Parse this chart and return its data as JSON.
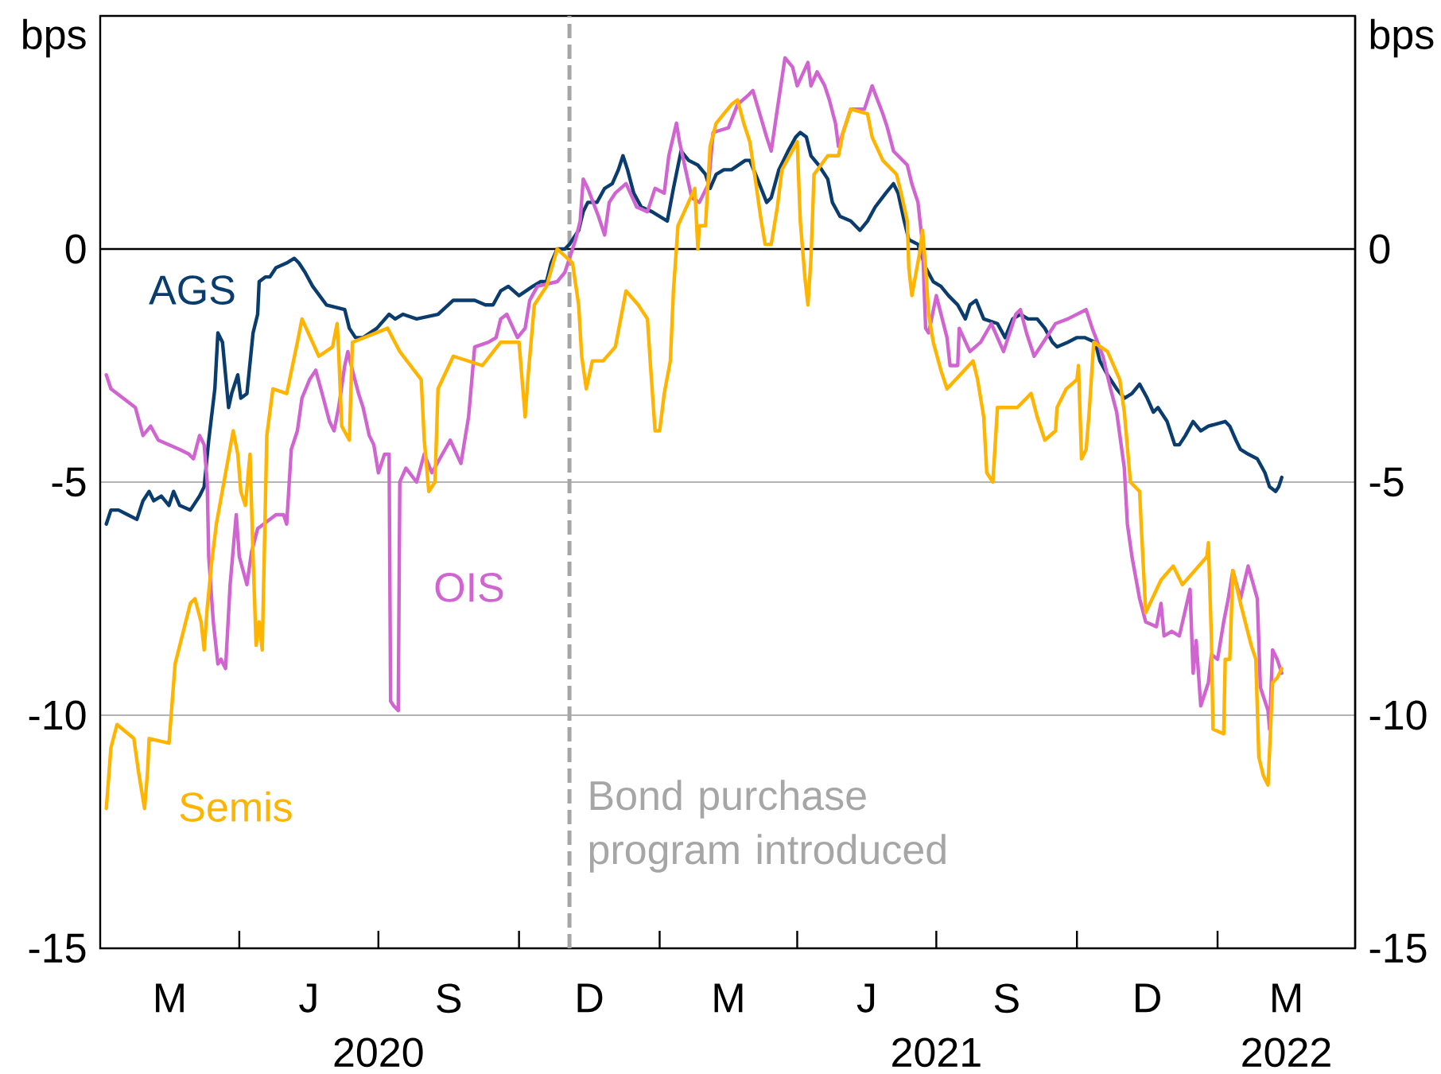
{
  "chart_data": {
    "type": "line",
    "ylabel": "bps",
    "y2label": "bps",
    "xlim": [
      "2020-01-01",
      "2022-04-01"
    ],
    "xticks": [
      {
        "value": "2020-04-01",
        "label": null
      },
      {
        "value": "2020-07-01",
        "label": null
      },
      {
        "value": "2020-07-01",
        "label": "2020"
      },
      {
        "value": "2020-10-01",
        "label": null
      },
      {
        "value": "2021-01-01",
        "label": null
      },
      {
        "value": "2021-04-01",
        "label": null
      },
      {
        "value": "2021-07-01",
        "label": null
      },
      {
        "value": "2021-07-01",
        "label": "2021"
      },
      {
        "value": "2021-10-01",
        "label": null
      },
      {
        "value": "2022-01-01",
        "label": null
      },
      {
        "value": "2022-02-15",
        "label": "2022"
      }
    ],
    "annotations": [
      "M",
      "J",
      "S",
      "D",
      "M",
      "J",
      "S",
      "D",
      "M"
    ],
    "ylim": [
      -15,
      5
    ],
    "yticks": [
      -15,
      -10,
      -5,
      0
    ],
    "y2lim": [
      -15,
      5
    ],
    "y2ticks": [
      -15,
      -10,
      -5,
      0
    ],
    "grid": "y",
    "marker": "none",
    "line_style": "solid",
    "ref_lines": [
      {
        "axis": "y",
        "value": 0,
        "color": "#000000"
      },
      {
        "axis": "x",
        "value": "2020-11-03",
        "label": "Bond purchase program introduced",
        "color": "#a6a6a6",
        "line_style": "dashed"
      }
    ],
    "series": [
      {
        "name": "AGS",
        "color": "#0b3c6e",
        "x": [
          "2020-01-05",
          "2020-01-08",
          "2020-01-13",
          "2020-01-19",
          "2020-01-25",
          "2020-01-29",
          "2020-02-02",
          "2020-02-05",
          "2020-02-10",
          "2020-02-15",
          "2020-02-18",
          "2020-02-22",
          "2020-02-29",
          "2020-03-06",
          "2020-03-09",
          "2020-03-12",
          "2020-03-16",
          "2020-03-18",
          "2020-03-21",
          "2020-03-25",
          "2020-03-27",
          "2020-03-31",
          "2020-04-02",
          "2020-04-06",
          "2020-04-10",
          "2020-04-13",
          "2020-04-14",
          "2020-04-18",
          "2020-04-21",
          "2020-04-25",
          "2020-05-02",
          "2020-05-07",
          "2020-05-10",
          "2020-05-14",
          "2020-05-19",
          "2020-05-28",
          "2020-06-09",
          "2020-06-12",
          "2020-06-16",
          "2020-06-21",
          "2020-06-30",
          "2020-07-08",
          "2020-07-12",
          "2020-07-17",
          "2020-07-26",
          "2020-08-09",
          "2020-08-19",
          "2020-08-26",
          "2020-09-02",
          "2020-09-09",
          "2020-09-14",
          "2020-09-19",
          "2020-09-24",
          "2020-10-01",
          "2020-10-10",
          "2020-10-15",
          "2020-10-19",
          "2020-10-22",
          "2020-10-26",
          "2020-10-31",
          "2020-11-03",
          "2020-11-09",
          "2020-11-12",
          "2020-11-15",
          "2020-11-21",
          "2020-11-26",
          "2020-12-01",
          "2020-12-05",
          "2020-12-08",
          "2020-12-11",
          "2020-12-15",
          "2020-12-20",
          "2020-12-27",
          "2021-01-06",
          "2021-01-10",
          "2021-01-15",
          "2021-01-20",
          "2021-01-26",
          "2021-01-31",
          "2021-02-03",
          "2021-02-07",
          "2021-02-12",
          "2021-02-17",
          "2021-02-26",
          "2021-03-01",
          "2021-03-06",
          "2021-03-12",
          "2021-03-15",
          "2021-03-20",
          "2021-03-26",
          "2021-03-31",
          "2021-04-03",
          "2021-04-07",
          "2021-04-10",
          "2021-04-15",
          "2021-04-21",
          "2021-04-24",
          "2021-04-29",
          "2021-05-06",
          "2021-05-12",
          "2021-05-17",
          "2021-05-22",
          "2021-05-29",
          "2021-06-03",
          "2021-06-06",
          "2021-06-10",
          "2021-06-13",
          "2021-06-19",
          "2021-06-24",
          "2021-06-29",
          "2021-07-04",
          "2021-07-09",
          "2021-07-15",
          "2021-07-20",
          "2021-07-23",
          "2021-07-27",
          "2021-08-01",
          "2021-08-10",
          "2021-08-15",
          "2021-08-20",
          "2021-08-25",
          "2021-08-30",
          "2021-09-05",
          "2021-09-10",
          "2021-09-15",
          "2021-09-18",
          "2021-09-25",
          "2021-10-01",
          "2021-10-06",
          "2021-10-13",
          "2021-10-16",
          "2021-10-21",
          "2021-10-27",
          "2021-11-01",
          "2021-11-06",
          "2021-11-11",
          "2021-11-16",
          "2021-11-20",
          "2021-11-23",
          "2021-11-29",
          "2021-12-04",
          "2021-12-07",
          "2021-12-11",
          "2021-12-16",
          "2021-12-21",
          "2021-12-26",
          "2022-01-06",
          "2022-01-09",
          "2022-01-13",
          "2022-01-16",
          "2022-01-21",
          "2022-01-27",
          "2022-02-01",
          "2022-02-04",
          "2022-02-08",
          "2022-02-10",
          "2022-02-12"
        ],
        "values": [
          -5.9,
          -5.6,
          -5.6,
          -5.7,
          -5.8,
          -5.4,
          -5.2,
          -5.4,
          -5.3,
          -5.5,
          -5.2,
          -5.5,
          -5.6,
          -5.3,
          -5.1,
          -4.1,
          -3.0,
          -1.8,
          -2.0,
          -3.4,
          -3.1,
          -2.7,
          -3.2,
          -3.1,
          -1.8,
          -1.4,
          -0.7,
          -0.6,
          -0.6,
          -0.4,
          -0.3,
          -0.2,
          -0.3,
          -0.5,
          -0.8,
          -1.2,
          -1.3,
          -1.7,
          -1.9,
          -1.9,
          -1.7,
          -1.4,
          -1.5,
          -1.4,
          -1.5,
          -1.4,
          -1.1,
          -1.1,
          -1.1,
          -1.2,
          -1.2,
          -0.9,
          -0.8,
          -1.0,
          -0.8,
          -0.7,
          -0.7,
          -0.3,
          0.0,
          0.0,
          0.1,
          0.4,
          0.8,
          1.0,
          1.0,
          1.3,
          1.4,
          1.7,
          2.0,
          1.7,
          1.2,
          0.9,
          0.8,
          0.6,
          1.3,
          2.1,
          1.9,
          1.8,
          1.6,
          1.3,
          1.6,
          1.7,
          1.7,
          1.9,
          1.9,
          1.5,
          1.0,
          1.1,
          1.7,
          2.1,
          2.4,
          2.5,
          2.4,
          2.0,
          1.8,
          1.5,
          1.0,
          0.7,
          0.6,
          0.4,
          0.6,
          0.9,
          1.2,
          1.4,
          1.2,
          0.6,
          0.2,
          0.1,
          -0.4,
          -0.7,
          -0.8,
          -1.0,
          -1.2,
          -1.5,
          -1.2,
          -1.1,
          -1.5,
          -1.6,
          -1.9,
          -1.5,
          -1.4,
          -1.5,
          -1.5,
          -1.7,
          -2.0,
          -2.1,
          -2.0,
          -1.9,
          -1.9,
          -2.0,
          -2.4,
          -2.7,
          -3.0,
          -3.2,
          -3.1,
          -2.9,
          -3.2,
          -3.5,
          -3.4,
          -3.7,
          -4.2,
          -4.2,
          -4.0,
          -3.7,
          -3.9,
          -3.8,
          -3.7,
          -3.8,
          -4.1,
          -4.3,
          -4.4,
          -4.5,
          -4.8,
          -5.1,
          -5.2,
          -5.1,
          -4.9
        ]
      },
      {
        "name": "OIS",
        "color": "#d064d0",
        "x": [
          "2020-01-05",
          "2020-01-08",
          "2020-01-24",
          "2020-01-29",
          "2020-02-03",
          "2020-02-08",
          "2020-02-22",
          "2020-02-28",
          "2020-03-02",
          "2020-03-06",
          "2020-03-09",
          "2020-03-11",
          "2020-03-12",
          "2020-03-15",
          "2020-03-18",
          "2020-03-20",
          "2020-03-23",
          "2020-03-26",
          "2020-03-30",
          "2020-04-01",
          "2020-04-06",
          "2020-04-09",
          "2020-04-13",
          "2020-04-25",
          "2020-04-30",
          "2020-05-02",
          "2020-05-05",
          "2020-05-09",
          "2020-05-12",
          "2020-05-17",
          "2020-05-21",
          "2020-05-26",
          "2020-05-30",
          "2020-06-02",
          "2020-06-05",
          "2020-06-09",
          "2020-06-11",
          "2020-06-14",
          "2020-06-18",
          "2020-06-21",
          "2020-06-25",
          "2020-06-28",
          "2020-07-01",
          "2020-07-05",
          "2020-07-08",
          "2020-07-09",
          "2020-07-11",
          "2020-07-14",
          "2020-07-15",
          "2020-07-19",
          "2020-07-26",
          "2020-07-31",
          "2020-08-05",
          "2020-08-17",
          "2020-08-24",
          "2020-08-29",
          "2020-09-02",
          "2020-09-11",
          "2020-09-16",
          "2020-09-19",
          "2020-09-23",
          "2020-09-30",
          "2020-10-05",
          "2020-10-08",
          "2020-10-13",
          "2020-10-26",
          "2020-10-31",
          "2020-11-03",
          "2020-11-07",
          "2020-11-10",
          "2020-11-12",
          "2020-11-15",
          "2020-11-22",
          "2020-11-26",
          "2020-11-29",
          "2020-12-03",
          "2020-12-10",
          "2020-12-17",
          "2020-12-24",
          "2020-12-29",
          "2021-01-04",
          "2021-01-07",
          "2021-01-12",
          "2021-01-14",
          "2021-01-22",
          "2021-01-27",
          "2021-02-02",
          "2021-02-05",
          "2021-02-15",
          "2021-02-21",
          "2021-02-28",
          "2021-03-03",
          "2021-03-12",
          "2021-03-15",
          "2021-03-19",
          "2021-03-24",
          "2021-03-29",
          "2021-04-01",
          "2021-04-08",
          "2021-04-10",
          "2021-04-14",
          "2021-04-19",
          "2021-04-22",
          "2021-04-26",
          "2021-04-28",
          "2021-05-01",
          "2021-05-06",
          "2021-05-15",
          "2021-05-20",
          "2021-05-27",
          "2021-05-30",
          "2021-06-03",
          "2021-06-12",
          "2021-06-15",
          "2021-06-19",
          "2021-06-22",
          "2021-06-24",
          "2021-06-26",
          "2021-07-01",
          "2021-07-08",
          "2021-07-10",
          "2021-07-15",
          "2021-07-16",
          "2021-07-23",
          "2021-07-30",
          "2021-08-06",
          "2021-08-10",
          "2021-08-14",
          "2021-08-22",
          "2021-08-25",
          "2021-08-29",
          "2021-09-03",
          "2021-09-17",
          "2021-09-25",
          "2021-10-07",
          "2021-10-11",
          "2021-10-18",
          "2021-10-23",
          "2021-10-27",
          "2021-11-01",
          "2021-11-03",
          "2021-11-06",
          "2021-11-11",
          "2021-11-15",
          "2021-11-22",
          "2021-11-25",
          "2021-11-27",
          "2021-12-02",
          "2021-12-07",
          "2021-12-14",
          "2021-12-16",
          "2021-12-18",
          "2021-12-21",
          "2021-12-26",
          "2021-12-28",
          "2022-01-01",
          "2022-01-05",
          "2022-01-08",
          "2022-01-11",
          "2022-01-16",
          "2022-01-21",
          "2022-01-27",
          "2022-01-29",
          "2022-02-03",
          "2022-02-04",
          "2022-02-06",
          "2022-02-09",
          "2022-02-12"
        ],
        "values": [
          -2.7,
          -3.0,
          -3.4,
          -4.0,
          -3.8,
          -4.1,
          -4.3,
          -4.4,
          -4.5,
          -4.0,
          -4.2,
          -5.0,
          -6.6,
          -8.0,
          -8.9,
          -8.8,
          -9.0,
          -7.2,
          -5.7,
          -6.6,
          -7.2,
          -6.5,
          -6.0,
          -5.7,
          -5.7,
          -5.9,
          -4.3,
          -3.9,
          -3.2,
          -2.8,
          -2.6,
          -3.2,
          -3.7,
          -3.9,
          -3.4,
          -2.5,
          -2.2,
          -2.6,
          -3.1,
          -3.4,
          -4.0,
          -4.2,
          -4.8,
          -4.4,
          -4.4,
          -9.7,
          -9.8,
          -9.9,
          -5.0,
          -4.7,
          -5.0,
          -4.4,
          -4.8,
          -4.1,
          -4.6,
          -3.6,
          -2.1,
          -2.0,
          -1.9,
          -1.5,
          -1.4,
          -1.9,
          -1.7,
          -1.1,
          -0.8,
          -0.7,
          -0.5,
          -0.2,
          0.2,
          0.6,
          1.5,
          1.3,
          0.7,
          0.3,
          1.0,
          1.2,
          1.4,
          0.9,
          0.8,
          1.3,
          1.2,
          2.0,
          2.7,
          2.3,
          1.1,
          1.0,
          1.4,
          2.5,
          2.6,
          3.1,
          3.3,
          3.4,
          2.4,
          2.1,
          3.0,
          4.1,
          3.9,
          3.5,
          4.0,
          3.5,
          3.8,
          3.5,
          3.2,
          2.7,
          2.2,
          2.5,
          3.0,
          3.0,
          3.5,
          2.9,
          2.6,
          2.1,
          1.8,
          1.4,
          1.0,
          0.1,
          -1.7,
          -1.8,
          -1.0,
          -1.9,
          -2.5,
          -2.5,
          -1.7,
          -2.2,
          -2.0,
          -1.6,
          -1.9,
          -2.2,
          -1.4,
          -1.3,
          -1.8,
          -2.3,
          -1.6,
          -1.5,
          -1.3,
          -1.7,
          -2.3,
          -3.0,
          -3.5,
          -4.7,
          -5.9,
          -6.6,
          -7.5,
          -8.0,
          -8.1,
          -7.6,
          -8.3,
          -8.2,
          -8.3,
          -7.3,
          -9.1,
          -8.4,
          -9.8,
          -9.3,
          -8.7,
          -8.8,
          -8.0,
          -7.5,
          -6.9,
          -7.5,
          -6.8,
          -7.5,
          -9.4,
          -9.9,
          -10.3,
          -8.6,
          -8.8,
          -9.1
        ]
      },
      {
        "name": "Semis",
        "color": "#ffb400",
        "x": [
          "2020-01-05",
          "2020-01-08",
          "2020-01-12",
          "2020-01-23",
          "2020-01-26",
          "2020-01-30",
          "2020-02-01",
          "2020-02-02",
          "2020-02-15",
          "2020-02-19",
          "2020-02-29",
          "2020-03-03",
          "2020-03-07",
          "2020-03-09",
          "2020-03-11",
          "2020-03-14",
          "2020-03-17",
          "2020-03-28",
          "2020-03-31",
          "2020-04-02",
          "2020-04-05",
          "2020-04-08",
          "2020-04-10",
          "2020-04-12",
          "2020-04-14",
          "2020-04-16",
          "2020-04-19",
          "2020-04-23",
          "2020-05-02",
          "2020-05-09",
          "2020-05-12",
          "2020-05-23",
          "2020-06-01",
          "2020-06-04",
          "2020-06-05",
          "2020-06-07",
          "2020-06-12",
          "2020-06-14",
          "2020-07-07",
          "2020-07-15",
          "2020-07-29",
          "2020-07-31",
          "2020-08-03",
          "2020-08-07",
          "2020-08-09",
          "2020-08-19",
          "2020-09-07",
          "2020-09-19",
          "2020-10-01",
          "2020-10-03",
          "2020-10-05",
          "2020-10-07",
          "2020-10-11",
          "2020-10-19",
          "2020-10-26",
          "2020-11-05",
          "2020-11-09",
          "2020-11-11",
          "2020-11-14",
          "2020-11-18",
          "2020-11-25",
          "2020-12-03",
          "2020-12-10",
          "2020-12-18",
          "2020-12-24",
          "2020-12-26",
          "2020-12-29",
          "2021-01-01",
          "2021-01-04",
          "2021-01-08",
          "2021-01-10",
          "2021-01-13",
          "2021-01-24",
          "2021-01-26",
          "2021-01-27",
          "2021-01-31",
          "2021-02-03",
          "2021-02-07",
          "2021-02-17",
          "2021-02-21",
          "2021-02-25",
          "2021-03-01",
          "2021-03-05",
          "2021-03-08",
          "2021-03-11",
          "2021-03-15",
          "2021-03-19",
          "2021-03-22",
          "2021-04-01",
          "2021-04-03",
          "2021-04-06",
          "2021-04-08",
          "2021-04-10",
          "2021-04-12",
          "2021-04-21",
          "2021-04-28",
          "2021-05-01",
          "2021-05-06",
          "2021-05-17",
          "2021-05-20",
          "2021-05-27",
          "2021-06-05",
          "2021-06-08",
          "2021-06-12",
          "2021-06-13",
          "2021-06-15",
          "2021-06-20",
          "2021-06-22",
          "2021-06-24",
          "2021-06-26",
          "2021-06-29",
          "2021-07-04",
          "2021-07-08",
          "2021-07-25",
          "2021-07-28",
          "2021-08-01",
          "2021-08-03",
          "2021-08-07",
          "2021-08-10",
          "2021-08-23",
          "2021-09-01",
          "2021-09-05",
          "2021-09-10",
          "2021-09-17",
          "2021-09-18",
          "2021-09-24",
          "2021-10-01",
          "2021-10-02",
          "2021-10-04",
          "2021-10-07",
          "2021-10-09",
          "2021-10-12",
          "2021-10-21",
          "2021-10-29",
          "2021-11-01",
          "2021-11-05",
          "2021-11-11",
          "2021-11-12",
          "2021-11-15",
          "2021-11-25",
          "2021-12-03",
          "2021-12-09",
          "2021-12-25",
          "2021-12-26",
          "2021-12-28",
          "2021-12-29",
          "2022-01-05",
          "2022-01-06",
          "2022-01-09",
          "2022-01-11",
          "2022-01-16",
          "2022-01-23",
          "2022-01-26",
          "2022-01-28",
          "2022-01-31",
          "2022-02-03",
          "2022-02-06",
          "2022-02-09",
          "2022-02-12"
        ],
        "values": [
          -12.0,
          -10.7,
          -10.2,
          -10.5,
          -11.2,
          -12.0,
          -11.2,
          -10.5,
          -10.6,
          -8.9,
          -7.6,
          -7.5,
          -8.0,
          -8.6,
          -7.7,
          -6.7,
          -5.9,
          -3.9,
          -4.4,
          -5.2,
          -5.5,
          -4.4,
          -6.6,
          -8.5,
          -8.0,
          -8.6,
          -4.0,
          -3.0,
          -3.1,
          -2.0,
          -1.5,
          -2.3,
          -2.1,
          -1.6,
          -2.2,
          -3.8,
          -4.1,
          -2.0,
          -1.7,
          -2.2,
          -2.8,
          -4.1,
          -5.2,
          -5.0,
          -3.0,
          -2.3,
          -2.5,
          -2.0,
          -2.0,
          -2.8,
          -3.6,
          -2.7,
          -1.2,
          -0.8,
          0.0,
          -0.3,
          -1.2,
          -2.3,
          -3.0,
          -2.4,
          -2.4,
          -2.1,
          -0.9,
          -1.2,
          -1.5,
          -2.5,
          -3.9,
          -3.9,
          -3.1,
          -2.4,
          -0.9,
          0.5,
          1.3,
          0.0,
          0.5,
          0.5,
          2.2,
          2.7,
          3.1,
          3.2,
          2.7,
          2.3,
          1.4,
          0.7,
          0.1,
          0.1,
          0.9,
          1.7,
          2.3,
          0.6,
          -0.6,
          -1.2,
          -0.2,
          1.6,
          2.0,
          2.0,
          2.5,
          3.0,
          2.9,
          2.4,
          1.9,
          1.6,
          1.2,
          0.6,
          -0.4,
          -1.0,
          -0.1,
          0.4,
          -0.4,
          -1.4,
          -2.0,
          -2.6,
          -3.0,
          -2.4,
          -2.8,
          -3.6,
          -4.8,
          -5.0,
          -3.4,
          -3.4,
          -3.1,
          -3.6,
          -4.1,
          -3.9,
          -3.4,
          -3.0,
          -2.8,
          -2.5,
          -4.5,
          -4.3,
          -3.5,
          -2.0,
          -2.2,
          -2.8,
          -3.5,
          -5.0,
          -5.2,
          -5.9,
          -7.8,
          -7.1,
          -6.8,
          -7.2,
          -6.6,
          -6.3,
          -8.4,
          -10.3,
          -10.4,
          -8.8,
          -8.8,
          -6.9,
          -7.6,
          -8.5,
          -8.8,
          -10.9,
          -11.3,
          -11.5,
          -9.3,
          -9.2,
          -9.0
        ]
      }
    ]
  }
}
